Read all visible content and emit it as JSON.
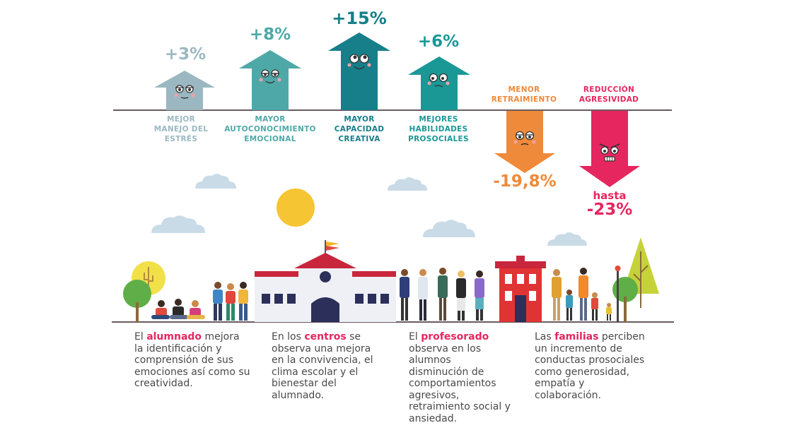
{
  "colors": {
    "arrow1": "#9bb8c2",
    "arrow2": "#4fa8a8",
    "arrow3": "#167f8a",
    "arrow4": "#1a9896",
    "orange": "#ef8a3a",
    "pink": "#e6265f",
    "line": "#6b5a5f",
    "cloud": "#c9dbe6",
    "sun": "#f6c533",
    "body_text": "#4a4a4a",
    "house_red": "#e03434",
    "school_roof": "#c8263c"
  },
  "indicators": [
    {
      "value": "+3%",
      "label": "MEJOR\nMANEJO DEL\nESTRÉS"
    },
    {
      "value": "+8%",
      "label": "MAYOR\nAUTOCONOCIMIENTO\nEMOCIONAL"
    },
    {
      "value": "+15%",
      "label": "MAYOR\nCAPACIDAD\nCREATIVA"
    },
    {
      "value": "+6%",
      "label": "MEJORES\nHABILIDADES\nPROSOCIALES"
    },
    {
      "value": "-19,8%",
      "label": "MENOR\nRETRAIMIENTO"
    },
    {
      "value": "-23%",
      "prefix": "hasta",
      "label": "REDUCCIÓN\nAGRESIVIDAD"
    }
  ],
  "descriptions": [
    {
      "before": "El ",
      "highlight": "alumnado",
      "after": " mejora la identificación y comprensión de sus emociones así como su creatividad."
    },
    {
      "before": "En los ",
      "highlight": "centros",
      "after": " se observa una mejora en la convivencia, el clima escolar y el bienestar del alumnado."
    },
    {
      "before": "El ",
      "highlight": "profesorado",
      "after": " observa en los alumnos disminución de comportamientos agresivos, retraimiento social y ansiedad."
    },
    {
      "before": "Las ",
      "highlight": "familias",
      "after": " perciben un incremento de conductas prosociales como generosidad, empatía y colaboración."
    }
  ]
}
